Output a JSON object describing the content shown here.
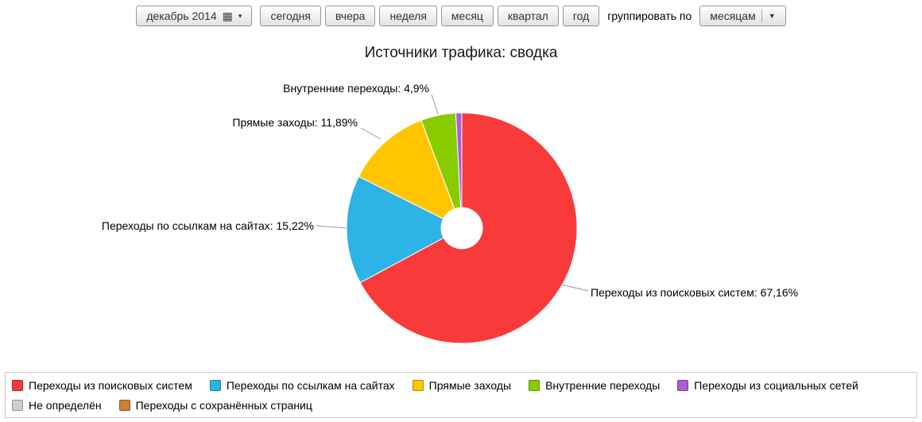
{
  "toolbar": {
    "date_button": {
      "label": "декабрь 2014",
      "calendar_icon": "▦",
      "caret": "▾"
    },
    "period_buttons": [
      "сегодня",
      "вчера",
      "неделя",
      "месяц",
      "квартал",
      "год"
    ],
    "group_by": {
      "label": "группировать по",
      "value": "месяцам",
      "caret": "▼"
    }
  },
  "chart_data": {
    "type": "pie",
    "title": "Источники трафика: сводка",
    "donut": true,
    "start_angle_deg": 0,
    "direction": "clockwise",
    "legend_position": "bottom",
    "slices": [
      {
        "label": "Переходы из поисковых систем",
        "value": 67.16,
        "percent_display": "67,16%",
        "color": "#f93a3a",
        "callout": "Переходы из поисковых систем: 67,16%"
      },
      {
        "label": "Переходы по ссылкам на сайтах",
        "value": 15.22,
        "percent_display": "15,22%",
        "color": "#2eb3e7",
        "callout": "Переходы по ссылкам на сайтах: 15,22%"
      },
      {
        "label": "Прямые заходы",
        "value": 11.89,
        "percent_display": "11,89%",
        "color": "#ffc600",
        "callout": "Прямые заходы: 11,89%"
      },
      {
        "label": "Внутренние переходы",
        "value": 4.9,
        "percent_display": "4,9%",
        "color": "#88cc00",
        "callout": "Внутренние переходы: 4,9%"
      },
      {
        "label": "Переходы из социальных сетей",
        "value": 0.83,
        "percent_display": "",
        "color": "#aa5fd3",
        "callout": ""
      }
    ]
  },
  "legend": {
    "items": [
      {
        "label": "Переходы из поисковых систем",
        "color": "#f93a3a"
      },
      {
        "label": "Переходы по ссылкам на сайтах",
        "color": "#2eb3e7"
      },
      {
        "label": "Прямые заходы",
        "color": "#ffc600"
      },
      {
        "label": "Внутренние переходы",
        "color": "#88cc00"
      },
      {
        "label": "Переходы из социальных сетей",
        "color": "#aa5fd3"
      },
      {
        "label": "Не определён",
        "color": "#cfcfcf"
      },
      {
        "label": "Переходы с сохранённых страниц",
        "color": "#cc7e33"
      }
    ]
  }
}
